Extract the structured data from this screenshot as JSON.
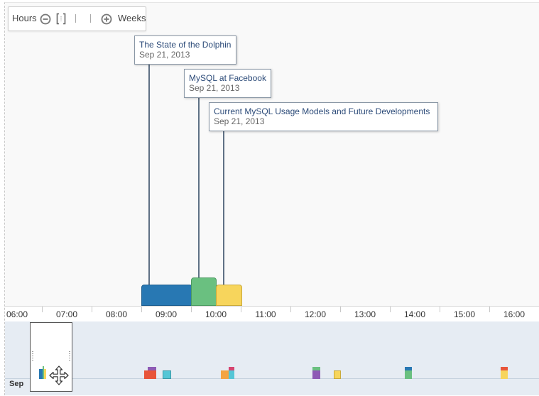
{
  "zoom": {
    "hours_label": "Hours",
    "weeks_label": "Weeks",
    "zoom_out_icon": "minus-circle-icon",
    "zoom_fit_icon": "bracket-fit-icon",
    "zoom_in_icon": "plus-circle-icon"
  },
  "events": [
    {
      "title": "The State of the Dolphin",
      "date": "Sep 21, 2013",
      "color": "#2878b3"
    },
    {
      "title": "MySQL at Facebook",
      "date": "Sep 21, 2013",
      "color": "#6ac080"
    },
    {
      "title": "Current MySQL Usage Models and Future Developments",
      "date": "Sep 21, 2013",
      "color": "#f7d55c"
    }
  ],
  "axis": {
    "labels": [
      "06:00",
      "07:00",
      "08:00",
      "09:00",
      "10:00",
      "11:00",
      "12:00",
      "13:00",
      "14:00",
      "15:00",
      "16:00"
    ]
  },
  "overview": {
    "month_label": "Sep",
    "colors": [
      "#2878b3",
      "#6ac080",
      "#f7d55c",
      "#e8553a",
      "#8e5bb5",
      "#55c6d6",
      "#f4a442",
      "#d64470"
    ],
    "move_icon": "move-cursor-icon"
  }
}
